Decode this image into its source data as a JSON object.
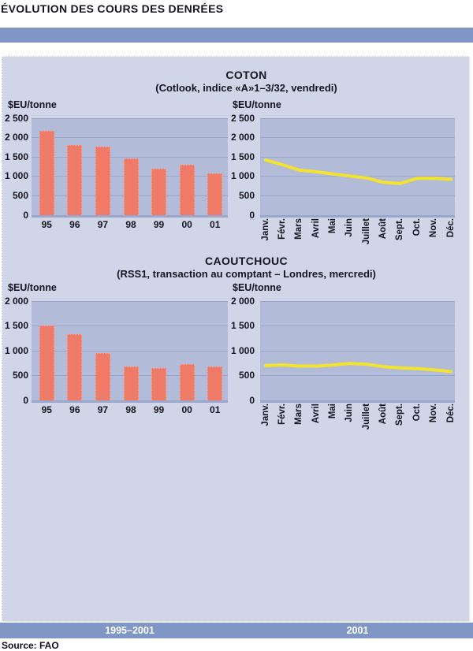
{
  "title": "ÉVOLUTION DES COURS DES DENRÉES",
  "source": "Source: FAO",
  "footer_band": {
    "left_label": "1995–2001",
    "right_label": "2001"
  },
  "colors": {
    "band_blue": "#8097c5",
    "panel": "#d1d5e8",
    "plot_bg": "#b2bcd8",
    "gridline": "#9aa6cb",
    "bar": "#ee7a67",
    "line": "#f3e32d",
    "text": "#15151f",
    "band_text": "#ffffff"
  },
  "chart_data": [
    {
      "id": "coton-bar",
      "type": "bar",
      "group": "COTON",
      "title": "COTON",
      "subtitle": "(Cotlook, indice «A»1–3/32, vendredi)",
      "ylabel": "$EU/tonne",
      "xlabel": "",
      "categories": [
        "95",
        "96",
        "97",
        "98",
        "99",
        "00",
        "01"
      ],
      "values": [
        2180,
        1800,
        1760,
        1470,
        1190,
        1310,
        1080
      ],
      "ylim": [
        0,
        2500
      ],
      "ytick_step": 500,
      "grid": true,
      "period": "1995–2001"
    },
    {
      "id": "coton-line",
      "type": "line",
      "group": "COTON",
      "ylabel": "$EU/tonne",
      "xlabel": "",
      "categories": [
        "Janv.",
        "Févr.",
        "Mars",
        "Avril",
        "Mai",
        "Juin",
        "Juillet",
        "Août",
        "Sept.",
        "Oct.",
        "Nov.",
        "Déc."
      ],
      "values": [
        1420,
        1300,
        1160,
        1120,
        1060,
        1010,
        960,
        845,
        820,
        950,
        950,
        925
      ],
      "ylim": [
        0,
        2500
      ],
      "ytick_step": 500,
      "grid": true,
      "period": "2001"
    },
    {
      "id": "caoutchouc-bar",
      "type": "bar",
      "group": "CAOUTCHOUC",
      "title": "CAOUTCHOUC",
      "subtitle": "(RSS1, transaction au comptant – Londres, mercredi)",
      "ylabel": "$EU/tonne",
      "xlabel": "",
      "categories": [
        "95",
        "96",
        "97",
        "98",
        "99",
        "00",
        "01"
      ],
      "values": [
        1510,
        1340,
        960,
        690,
        645,
        730,
        685
      ],
      "ylim": [
        0,
        2000
      ],
      "ytick_step": 500,
      "grid": true,
      "period": "1995–2001"
    },
    {
      "id": "caoutchouc-line",
      "type": "line",
      "group": "CAOUTCHOUC",
      "ylabel": "$EU/tonne",
      "xlabel": "",
      "categories": [
        "Janv.",
        "Févr.",
        "Mars",
        "Avril",
        "Mai",
        "Juin",
        "Juillet",
        "Août",
        "Sept.",
        "Oct.",
        "Nov.",
        "Déc."
      ],
      "values": [
        700,
        715,
        690,
        690,
        712,
        745,
        725,
        680,
        655,
        640,
        615,
        580
      ],
      "ylim": [
        0,
        2000
      ],
      "ytick_step": 500,
      "grid": true,
      "period": "2001"
    }
  ]
}
